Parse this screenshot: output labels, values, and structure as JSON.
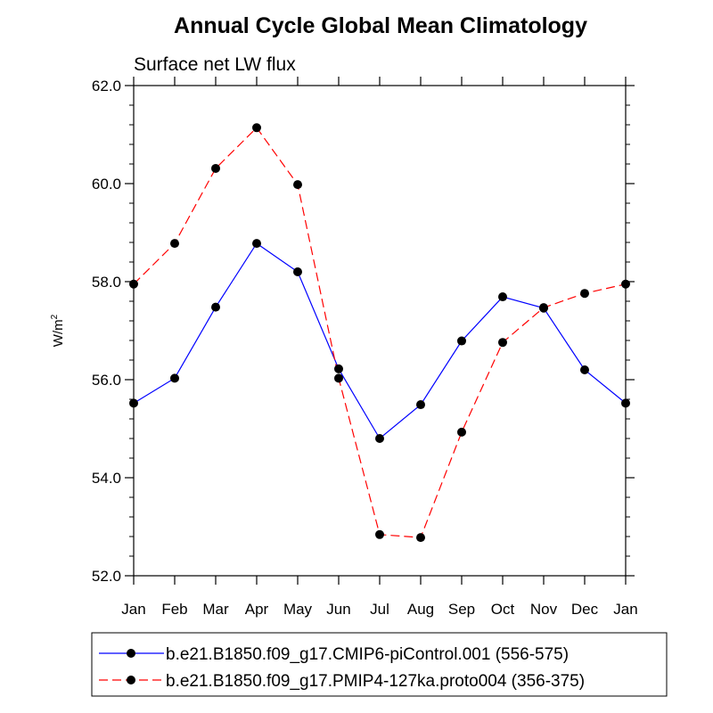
{
  "chart_data": {
    "type": "line",
    "title": "Annual Cycle Global Mean Climatology",
    "subtitle": "Surface net LW flux",
    "ylabel": "W/m",
    "ylabel_superscript": "2",
    "ylim": [
      52.0,
      62.0
    ],
    "yticks": [
      "52.0",
      "54.0",
      "56.0",
      "58.0",
      "60.0",
      "62.0"
    ],
    "categories": [
      "Jan",
      "Feb",
      "Mar",
      "Apr",
      "May",
      "Jun",
      "Jul",
      "Aug",
      "Sep",
      "Oct",
      "Nov",
      "Dec",
      "Jan"
    ],
    "series": [
      {
        "name": "b.e21.B1850.f09_g17.CMIP6-piControl.001 (556-575)",
        "color": "#0000ff",
        "line_style": "solid",
        "values": [
          55.52,
          56.03,
          57.48,
          58.78,
          58.2,
          56.22,
          54.8,
          55.49,
          56.79,
          57.69,
          57.46,
          56.2,
          55.52
        ]
      },
      {
        "name": "b.e21.B1850.f09_g17.PMIP4-127ka.proto004 (356-375)",
        "color": "#ff0000",
        "line_style": "dashed",
        "values": [
          57.95,
          58.78,
          60.31,
          61.14,
          59.98,
          56.03,
          52.84,
          52.78,
          54.93,
          56.76,
          57.47,
          57.76,
          57.95
        ]
      }
    ],
    "marker_color": "#000000",
    "grid": false,
    "legend_position": "bottom"
  }
}
